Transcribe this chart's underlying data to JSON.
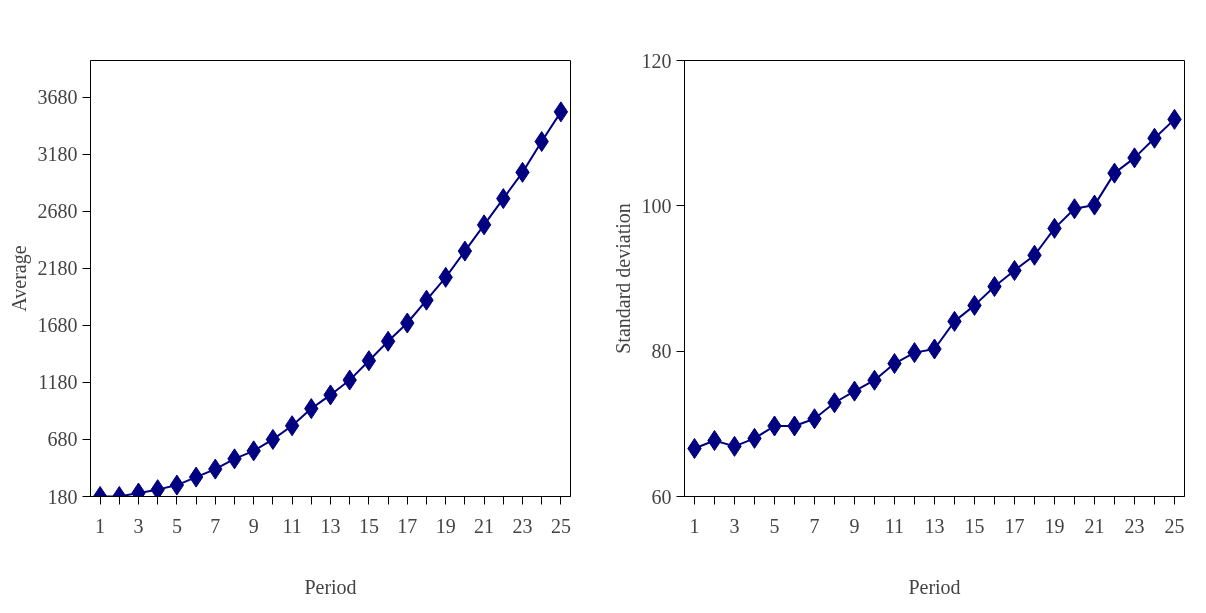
{
  "chart_data": [
    {
      "type": "line",
      "ylabel": "Average",
      "xlabel": "Period",
      "x": [
        1,
        2,
        3,
        4,
        5,
        6,
        7,
        8,
        9,
        10,
        11,
        12,
        13,
        14,
        15,
        16,
        17,
        18,
        19,
        20,
        21,
        22,
        23,
        24,
        25
      ],
      "series": [
        {
          "color": "#000080",
          "values": [
            180,
            180,
            210,
            240,
            280,
            350,
            420,
            510,
            580,
            680,
            800,
            950,
            1070,
            1200,
            1370,
            1540,
            1700,
            1900,
            2100,
            2330,
            2560,
            2790,
            3020,
            3290,
            3550
          ]
        }
      ],
      "xlim": [
        0.5,
        25.5
      ],
      "xticks": [
        1,
        {
          "value": 2,
          "label": null
        },
        3,
        {
          "value": 4,
          "label": null
        },
        5,
        {
          "value": 6,
          "label": null
        },
        7,
        {
          "value": 8,
          "label": null
        },
        9,
        {
          "value": 10,
          "label": null
        },
        11,
        {
          "value": 12,
          "label": null
        },
        13,
        {
          "value": 14,
          "label": null
        },
        15,
        {
          "value": 16,
          "label": null
        },
        17,
        {
          "value": 18,
          "label": null
        },
        19,
        {
          "value": 20,
          "label": null
        },
        21,
        {
          "value": 22,
          "label": null
        },
        23,
        {
          "value": 24,
          "label": null
        },
        25
      ],
      "ylim": [
        180,
        4000
      ],
      "yticks": [
        180,
        680,
        1180,
        1680,
        2180,
        2680,
        3180,
        3680
      ],
      "grid": false,
      "marker": "diamond",
      "line_style": "solid"
    },
    {
      "type": "line",
      "ylabel": "Standard deviation",
      "xlabel": "Period",
      "x": [
        1,
        2,
        3,
        4,
        5,
        6,
        7,
        8,
        9,
        10,
        11,
        12,
        13,
        14,
        15,
        16,
        17,
        18,
        19,
        20,
        21,
        22,
        23,
        24,
        25
      ],
      "series": [
        {
          "color": "#000080",
          "values": [
            66.6,
            67.7,
            66.9,
            68.0,
            69.7,
            69.7,
            70.7,
            72.9,
            74.5,
            76.0,
            78.3,
            79.8,
            80.3,
            84.1,
            86.3,
            88.9,
            91.1,
            93.2,
            96.9,
            99.6,
            100.1,
            104.5,
            106.6,
            109.3,
            111.9
          ]
        }
      ],
      "xlim": [
        0.5,
        25.5
      ],
      "xticks": [
        1,
        {
          "value": 2,
          "label": null
        },
        3,
        {
          "value": 4,
          "label": null
        },
        5,
        {
          "value": 6,
          "label": null
        },
        7,
        {
          "value": 8,
          "label": null
        },
        9,
        {
          "value": 10,
          "label": null
        },
        11,
        {
          "value": 12,
          "label": null
        },
        13,
        {
          "value": 14,
          "label": null
        },
        15,
        {
          "value": 16,
          "label": null
        },
        17,
        {
          "value": 18,
          "label": null
        },
        19,
        {
          "value": 20,
          "label": null
        },
        21,
        {
          "value": 22,
          "label": null
        },
        23,
        {
          "value": 24,
          "label": null
        },
        25
      ],
      "ylim": [
        60,
        120
      ],
      "yticks": [
        60,
        80,
        100,
        120
      ],
      "grid": false,
      "marker": "diamond",
      "line_style": "solid"
    }
  ]
}
